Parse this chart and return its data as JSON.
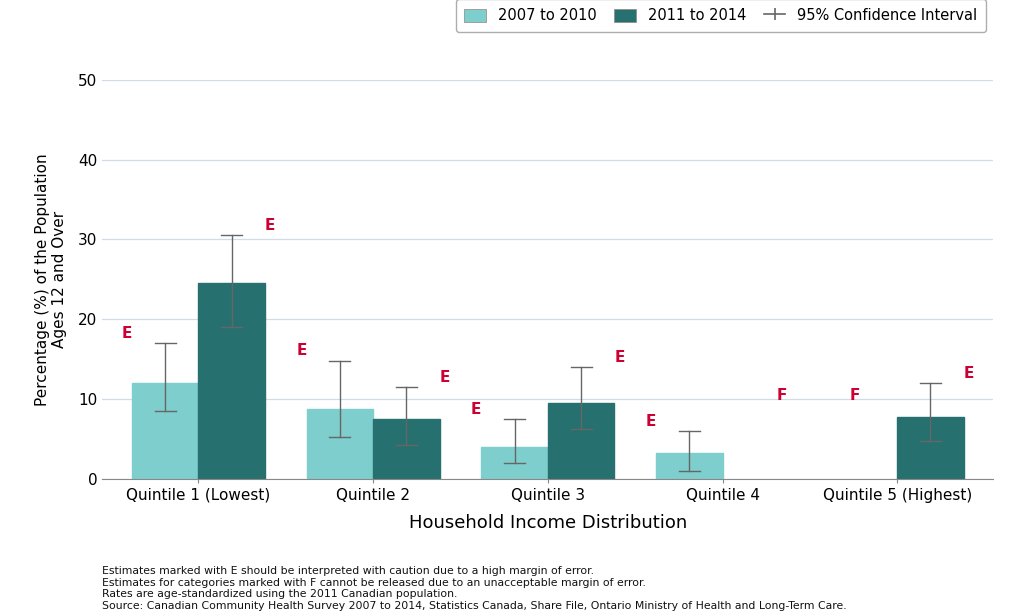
{
  "categories": [
    "Quintile 1 (Lowest)",
    "Quintile 2",
    "Quintile 3",
    "Quintile 4",
    "Quintile 5 (Highest)"
  ],
  "series1_label": "2007 to 2010",
  "series2_label": "2011 to 2014",
  "series1_color": "#7ECECE",
  "series2_color": "#277070",
  "series1_values": [
    12.0,
    8.8,
    4.0,
    3.3,
    null
  ],
  "series2_values": [
    24.5,
    7.5,
    9.5,
    null,
    7.8
  ],
  "series1_ci_low": [
    8.5,
    5.2,
    2.0,
    1.0,
    null
  ],
  "series1_ci_high": [
    17.0,
    14.8,
    7.5,
    6.0,
    null
  ],
  "series2_ci_low": [
    19.0,
    4.2,
    6.2,
    null,
    4.8
  ],
  "series2_ci_high": [
    30.5,
    11.5,
    14.0,
    null,
    12.0
  ],
  "series1_labels": [
    "E",
    "E",
    "E",
    "E",
    "F"
  ],
  "series2_labels": [
    "E",
    "E",
    "E",
    "F",
    "E"
  ],
  "series1_label_offsets": [
    [
      0.0,
      0.5
    ],
    [
      0.0,
      0.5
    ],
    [
      0.0,
      0.5
    ],
    [
      0.0,
      0.5
    ],
    [
      0.0,
      0.5
    ]
  ],
  "series2_label_offsets": [
    [
      0.0,
      0.5
    ],
    [
      0.0,
      0.5
    ],
    [
      0.0,
      0.5
    ],
    [
      0.0,
      0.5
    ],
    [
      0.0,
      0.5
    ]
  ],
  "ylabel": "Percentage (%) of the Population\nAges 12 and Over",
  "xlabel": "Household Income Distribution",
  "ylim": [
    0,
    50
  ],
  "yticks": [
    0,
    10,
    20,
    30,
    40,
    50
  ],
  "bar_width": 0.38,
  "ci_color": "#666666",
  "label_color": "#CC0033",
  "footnote_lines": [
    "Estimates marked with E should be interpreted with caution due to a high margin of error.",
    "Estimates for categories marked with F cannot be released due to an unacceptable margin of error.",
    "Rates are age-standardized using the 2011 Canadian population.",
    "Source: Canadian Community Health Survey 2007 to 2014, Statistics Canada, Share File, Ontario Ministry of Health and Long-Term Care."
  ],
  "background_color": "#FFFFFF",
  "grid_color": "#D0DDE8",
  "legend_ci_label": "95% Confidence Interval"
}
